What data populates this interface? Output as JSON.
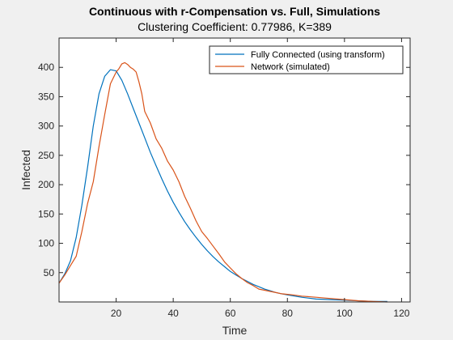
{
  "chart_data": {
    "type": "line",
    "title": "Continuous with r-Compensation vs. Full, Simulations",
    "subtitle": "Clustering Coefficient: 0.77986, K=389",
    "xlabel": "Time",
    "ylabel": "Infected",
    "xlim": [
      0,
      123
    ],
    "ylim": [
      0,
      450
    ],
    "xticks": [
      20,
      40,
      60,
      80,
      100,
      120
    ],
    "yticks": [
      50,
      100,
      150,
      200,
      250,
      300,
      350,
      400
    ],
    "grid": false,
    "legend_position": "top-right",
    "series": [
      {
        "name": "Fully Connected (using transform)",
        "color": "#0072BD",
        "x": [
          0,
          2,
          4,
          6,
          8,
          10,
          12,
          14,
          16,
          18,
          20,
          22,
          24,
          26,
          28,
          30,
          32,
          34,
          36,
          38,
          40,
          42,
          44,
          46,
          48,
          50,
          52,
          54,
          56,
          58,
          60,
          62,
          64,
          66,
          68,
          70,
          72,
          74,
          76,
          78,
          80,
          85,
          90,
          95,
          100,
          105,
          110,
          115
        ],
        "y": [
          32,
          48,
          70,
          110,
          165,
          230,
          300,
          355,
          385,
          396,
          394,
          378,
          355,
          330,
          305,
          280,
          255,
          232,
          210,
          189,
          170,
          153,
          137,
          123,
          110,
          98,
          87,
          77,
          68,
          60,
          52,
          46,
          40,
          35,
          30,
          26,
          22,
          19,
          16,
          14,
          12,
          8,
          5,
          4,
          3,
          2,
          1,
          1
        ]
      },
      {
        "name": "Network (simulated)",
        "color": "#D95319",
        "x": [
          0,
          2,
          4,
          6,
          8,
          10,
          12,
          14,
          16,
          18,
          20,
          21,
          22,
          23,
          24,
          25,
          26,
          27,
          28,
          29,
          30,
          32,
          34,
          36,
          38,
          40,
          42,
          44,
          46,
          48,
          50,
          52,
          54,
          56,
          58,
          60,
          62,
          64,
          66,
          68,
          70,
          72,
          74,
          76,
          78,
          80,
          82,
          85,
          90,
          95,
          100,
          105,
          110,
          115
        ],
        "y": [
          32,
          46,
          62,
          78,
          120,
          168,
          205,
          265,
          320,
          372,
          392,
          398,
          406,
          408,
          405,
          400,
          397,
          392,
          375,
          355,
          325,
          305,
          278,
          262,
          240,
          225,
          205,
          180,
          160,
          138,
          120,
          108,
          95,
          82,
          68,
          58,
          48,
          40,
          33,
          28,
          22,
          20,
          18,
          16,
          14,
          13,
          12,
          10,
          8,
          6,
          4,
          2,
          1,
          0
        ]
      }
    ]
  }
}
